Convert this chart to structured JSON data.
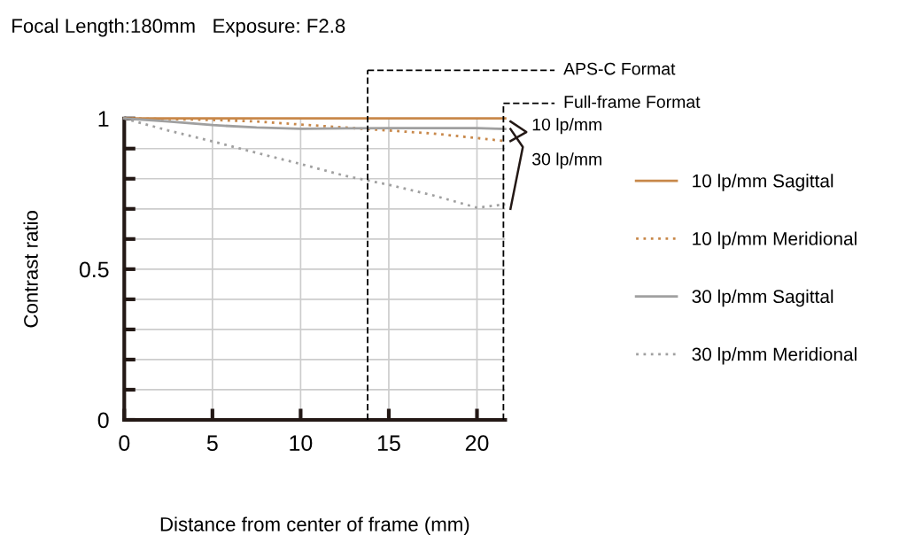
{
  "chart_data": {
    "type": "line",
    "title": "Focal Length:180mm   Exposure: F2.8",
    "xlabel": "Distance from center of frame (mm)",
    "ylabel": "Contrast ratio",
    "xlim": [
      0,
      21.6
    ],
    "ylim": [
      0,
      1
    ],
    "xticks": [
      0,
      5,
      10,
      15,
      20
    ],
    "yticks": [
      0,
      {
        "value": 0.1,
        "label": null
      },
      {
        "value": 0.2,
        "label": null
      },
      {
        "value": 0.3,
        "label": null
      },
      {
        "value": 0.4,
        "label": null
      },
      0.5,
      {
        "value": 0.6,
        "label": null
      },
      {
        "value": 0.7,
        "label": null
      },
      {
        "value": 0.8,
        "label": null
      },
      {
        "value": 0.9,
        "label": null
      },
      1
    ],
    "grid": true,
    "legend": "right",
    "marker": "none",
    "x": [
      0,
      2.5,
      5,
      7.5,
      10,
      12.5,
      15,
      17.5,
      20,
      21.6
    ],
    "series": [
      {
        "name": "10 lp/mm Sagittal",
        "color": "#c8884a",
        "line_style": "solid",
        "values": [
          1.0,
          1.0,
          1.0,
          1.0,
          1.0,
          1.0,
          1.0,
          1.0,
          1.0,
          1.0
        ]
      },
      {
        "name": "10 lp/mm Meridional",
        "color": "#c8884a",
        "line_style": "dotted",
        "values": [
          1.0,
          0.998,
          0.995,
          0.99,
          0.98,
          0.97,
          0.96,
          0.95,
          0.935,
          0.925
        ]
      },
      {
        "name": "30 lp/mm Sagittal",
        "color": "#a0a0a0",
        "line_style": "solid",
        "values": [
          1.0,
          0.99,
          0.978,
          0.97,
          0.966,
          0.967,
          0.968,
          0.968,
          0.968,
          0.965
        ]
      },
      {
        "name": "30 lp/mm Meridional",
        "color": "#a0a0a0",
        "line_style": "dotted",
        "values": [
          1.0,
          0.96,
          0.924,
          0.886,
          0.849,
          0.81,
          0.78,
          0.745,
          0.704,
          0.715
        ]
      }
    ],
    "ref_lines": [
      {
        "axis": "x",
        "value": 13.8,
        "label": "APS-C Format",
        "color": "#000000",
        "line_style": "dashed"
      },
      {
        "axis": "x",
        "value": 21.5,
        "label": "Full-frame Format",
        "color": "#000000",
        "line_style": "dashed"
      }
    ],
    "annotations": [
      "10 lp/mm",
      "30 lp/mm"
    ]
  }
}
